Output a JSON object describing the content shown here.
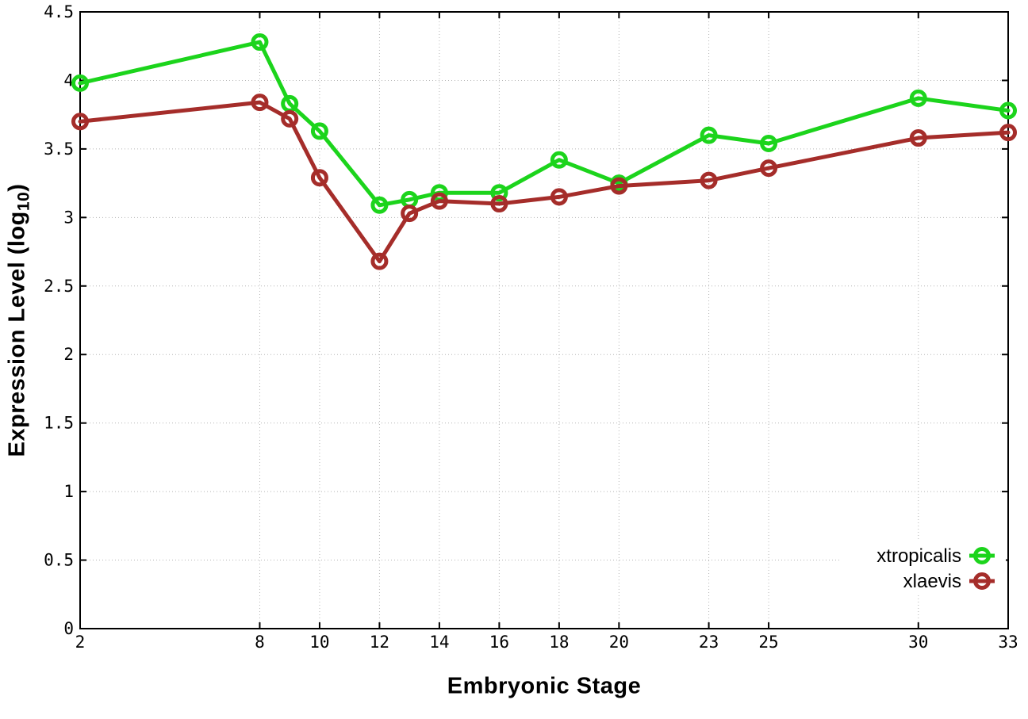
{
  "chart_data": {
    "type": "line",
    "title": "",
    "xlabel": "Embryonic Stage",
    "ylabel": "Expression Level (log10)",
    "ylabel_parts": {
      "prefix": "Expression Level (log",
      "sub": "10",
      "suffix": ")"
    },
    "x": [
      2,
      8,
      9,
      10,
      12,
      13,
      14,
      16,
      18,
      20,
      23,
      25,
      30,
      33
    ],
    "series": [
      {
        "name": "xtropicalis",
        "color": "#1cd41c",
        "values": [
          3.98,
          4.28,
          3.83,
          3.63,
          3.09,
          3.13,
          3.18,
          3.18,
          3.42,
          3.25,
          3.6,
          3.54,
          3.87,
          3.78
        ]
      },
      {
        "name": "xlaevis",
        "color": "#a52d2a",
        "values": [
          3.7,
          3.84,
          3.72,
          3.29,
          2.68,
          3.03,
          3.12,
          3.1,
          3.15,
          3.23,
          3.27,
          3.36,
          3.58,
          3.62
        ]
      }
    ],
    "x_ticks": [
      2,
      8,
      10,
      12,
      14,
      16,
      18,
      20,
      23,
      25,
      30,
      33
    ],
    "y_ticks": [
      0,
      0.5,
      1,
      1.5,
      2,
      2.5,
      3,
      3.5,
      4,
      4.5
    ],
    "xlim": [
      2,
      33
    ],
    "ylim": [
      0,
      4.5
    ],
    "grid": true,
    "marker": "open-circle",
    "legend_position": "inside-bottom-right",
    "legend_entries": [
      "xtropicalis",
      "xlaevis"
    ]
  },
  "colors": {
    "grid": "#b5b5b5",
    "border": "#000000",
    "tick_label": "#000000",
    "legend_text": "#000000",
    "background": "#ffffff"
  }
}
